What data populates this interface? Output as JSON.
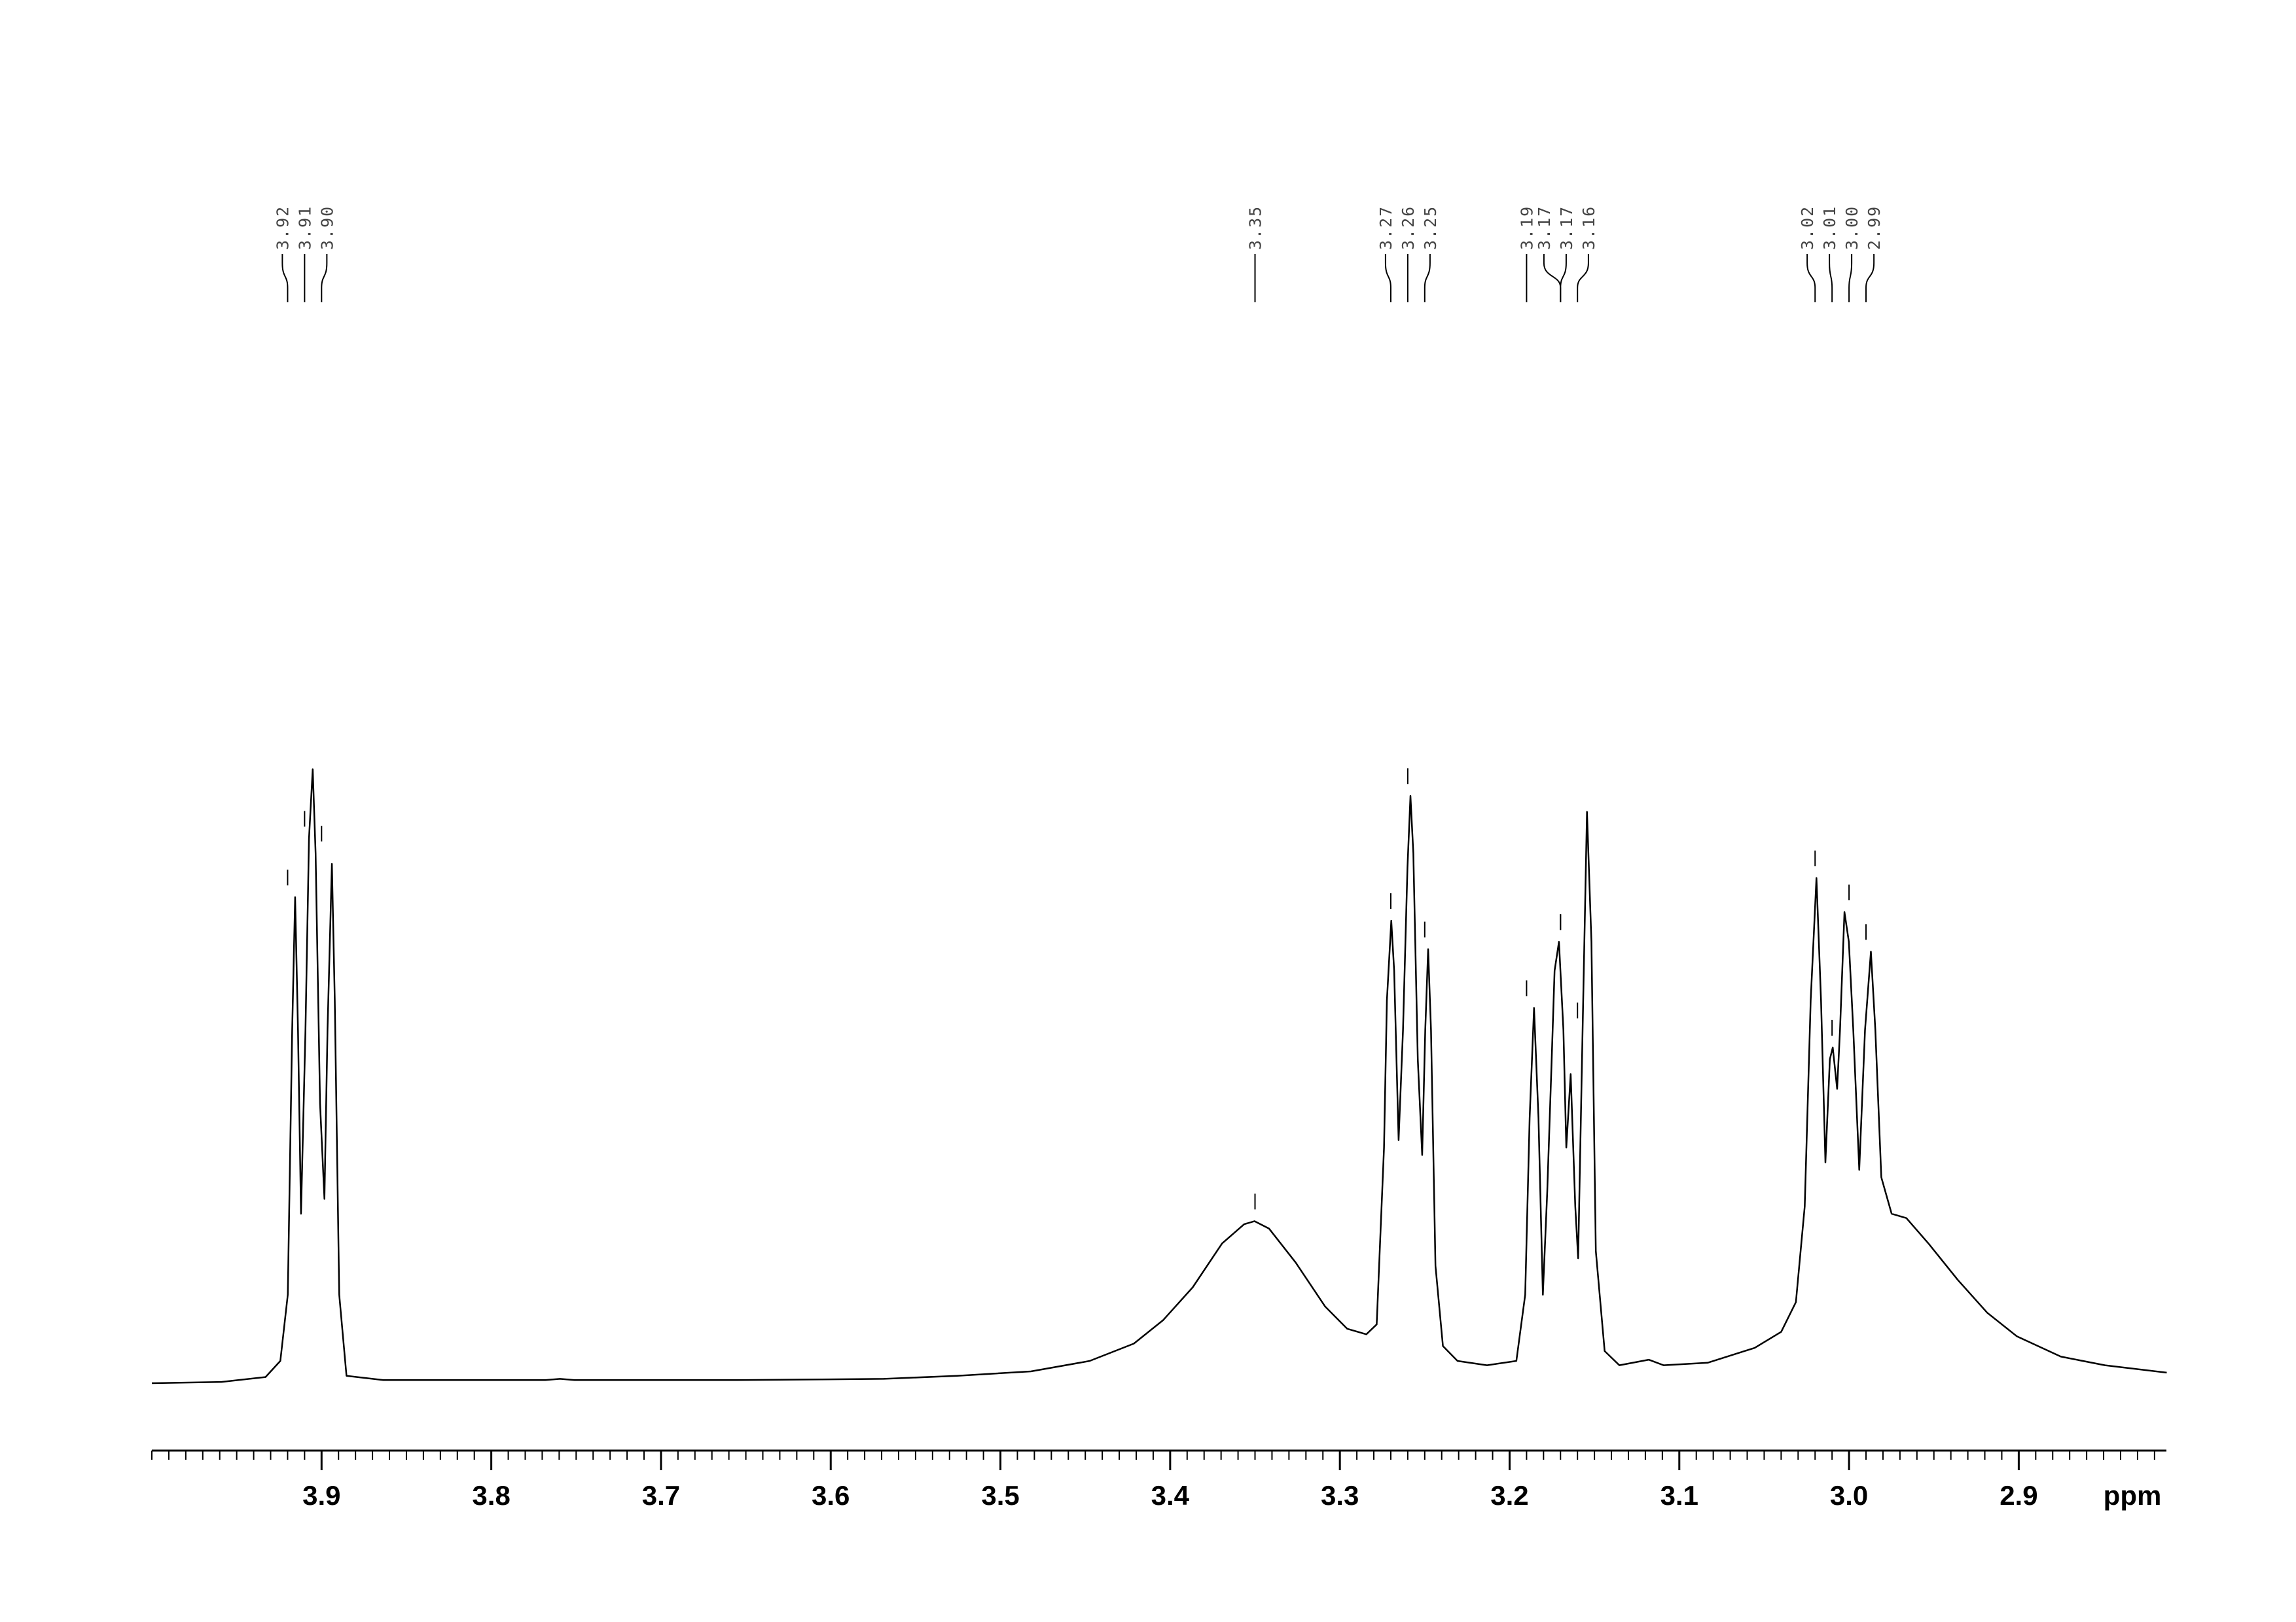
{
  "chart_data": {
    "type": "line",
    "x_label": "ppm",
    "xlim": [
      4.0,
      2.813
    ],
    "ylim": [
      0,
      100
    ],
    "xticks": [
      3.9,
      3.8,
      3.7,
      3.6,
      3.5,
      3.4,
      3.3,
      3.2,
      3.1,
      {
        "value": 3,
        "label": "3.0"
      },
      2.9
    ],
    "minor_xtick_step": 0.01,
    "color": "#000000",
    "peak_labels": [
      3.92,
      3.91,
      {
        "value": 3.9,
        "label": "3.90"
      },
      3.35,
      3.27,
      3.26,
      3.25,
      3.19,
      3.17,
      3.17,
      3.16,
      3.02,
      3.01,
      {
        "value": 3,
        "label": "3.00"
      },
      2.99
    ],
    "x": [
      4.0,
      3.959,
      3.933,
      3.9243,
      3.9199,
      3.9173,
      3.9156,
      3.9139,
      3.9121,
      3.9095,
      3.9074,
      3.9052,
      3.9035,
      3.9009,
      3.8983,
      3.8965,
      3.8939,
      3.8922,
      3.8896,
      3.8853,
      3.8636,
      3.7682,
      3.7595,
      3.7509,
      3.6555,
      3.5688,
      3.5255,
      3.4821,
      3.4474,
      3.4214,
      3.4041,
      3.3867,
      3.3694,
      3.3564,
      3.3503,
      3.3417,
      3.326,
      3.3087,
      3.2957,
      3.2844,
      3.2783,
      3.274,
      3.2723,
      3.2697,
      3.268,
      3.2654,
      3.2628,
      3.2602,
      3.2584,
      3.2567,
      3.2541,
      3.2515,
      3.2497,
      3.248,
      3.2463,
      3.2437,
      3.2393,
      3.2307,
      3.2133,
      3.196,
      3.1908,
      3.1882,
      3.1856,
      3.183,
      3.1804,
      3.1778,
      3.1752,
      3.1735,
      3.1709,
      3.1683,
      3.1666,
      3.164,
      3.1613,
      3.1596,
      3.157,
      3.1544,
      3.1518,
      3.1492,
      3.144,
      3.1353,
      3.118,
      3.1093,
      3.0833,
      3.0616,
      3.0556,
      3.04,
      3.0313,
      3.0261,
      3.0226,
      3.0192,
      3.0165,
      3.0139,
      3.0113,
      3.0096,
      3.007,
      3.0053,
      3.0027,
      3.0001,
      2.9975,
      2.994,
      2.9906,
      2.9871,
      2.9845,
      2.981,
      2.9749,
      2.9662,
      2.9532,
      2.9359,
      2.9186,
      2.9012,
      2.8752,
      2.8492,
      2.8128
    ],
    "values": [
      0,
      0.2,
      1.0,
      3.6,
      14.3,
      57.1,
      78.6,
      57.1,
      27.4,
      57.1,
      88.1,
      99.3,
      85.7,
      45.2,
      29.8,
      57.1,
      84.0,
      61.9,
      14.3,
      1.2,
      0.5,
      0.5,
      0.7,
      0.5,
      0.5,
      0.7,
      1.2,
      1.9,
      3.6,
      6.4,
      10.2,
      15.5,
      22.6,
      25.7,
      26.2,
      25.0,
      19.5,
      12.4,
      8.8,
      7.9,
      9.5,
      38.1,
      61.9,
      74.8,
      66.7,
      39.3,
      57.1,
      83.3,
      95.0,
      85.7,
      52.4,
      36.9,
      57.1,
      70.2,
      57.1,
      19.0,
      6.0,
      3.6,
      2.9,
      3.6,
      14.3,
      42.9,
      60.7,
      42.9,
      14.3,
      31.0,
      52.4,
      66.7,
      71.4,
      57.1,
      38.1,
      50.0,
      28.6,
      20.2,
      57.1,
      92.4,
      71.4,
      21.4,
      5.2,
      2.9,
      3.8,
      2.9,
      3.3,
      5.2,
      5.7,
      8.3,
      13.1,
      28.6,
      61.9,
      81.7,
      61.9,
      35.7,
      52.4,
      54.3,
      47.6,
      57.1,
      76.2,
      71.4,
      57.1,
      34.5,
      57.1,
      69.8,
      57.1,
      33.3,
      27.4,
      26.7,
      22.6,
      16.7,
      11.4,
      7.6,
      4.3,
      2.9,
      1.7
    ]
  }
}
